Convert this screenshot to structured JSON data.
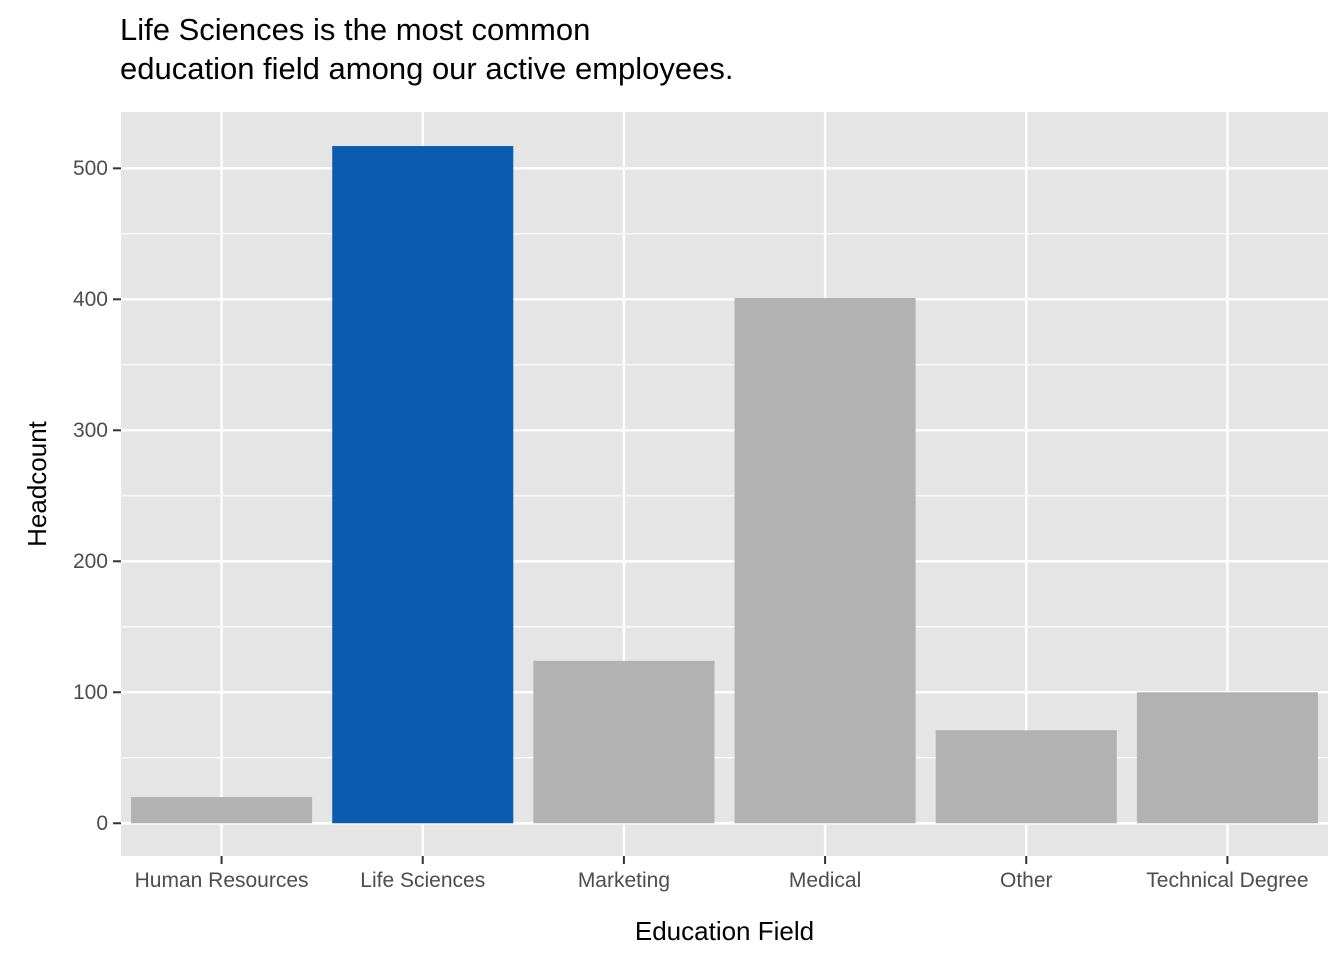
{
  "title_lines": [
    "Life Sciences is the most common",
    "education field among our active employees."
  ],
  "chart_data": {
    "type": "bar",
    "categories": [
      "Human Resources",
      "Life Sciences",
      "Marketing",
      "Medical",
      "Other",
      "Technical Degree"
    ],
    "values": [
      20,
      517,
      124,
      401,
      71,
      100
    ],
    "highlight": "Life Sciences",
    "colors": {
      "highlight": "#0b5bb0",
      "default": "#b2b2b2",
      "panel": "#e5e5e5",
      "grid": "#ffffff",
      "tick_text": "#4d4d4d",
      "tick_mark": "#333333"
    },
    "title": "Life Sciences is the most common education field among our active employees.",
    "xlabel": "Education Field",
    "ylabel": "Headcount",
    "yticks": [
      0,
      100,
      200,
      300,
      400,
      500
    ],
    "ylim": [
      -25,
      543
    ],
    "grid": true,
    "legend": "none"
  }
}
